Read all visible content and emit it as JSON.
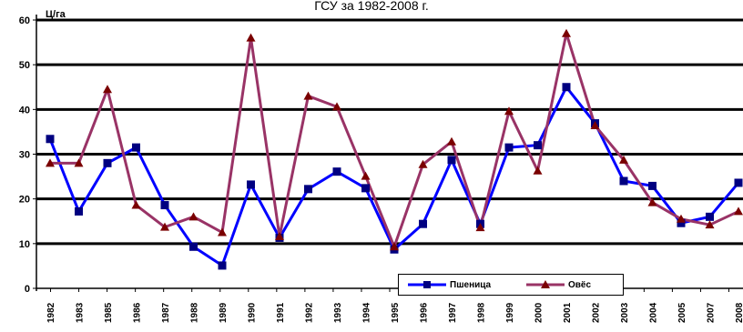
{
  "chart_data": {
    "type": "line",
    "title": "ГСУ за 1982-2008 г.",
    "ylabel": "Ц/га",
    "xlabel": "",
    "ylim": [
      0,
      60
    ],
    "yticks": [
      0,
      10,
      20,
      30,
      40,
      50,
      60
    ],
    "grid": true,
    "legend_position": "bottom-center",
    "categories": [
      "1982",
      "1983",
      "1985",
      "1986",
      "1987",
      "1988",
      "1989",
      "1990",
      "1991",
      "1992",
      "1993",
      "1994",
      "1995",
      "1996",
      "1997",
      "1998",
      "1999",
      "2000",
      "2001",
      "2002",
      "2003",
      "2004",
      "2005",
      "2007",
      "2008"
    ],
    "series": [
      {
        "name": "Пшеница",
        "color": "#0000ff",
        "marker": "square",
        "values": [
          33.4,
          17.2,
          28.0,
          31.5,
          18.6,
          9.3,
          5.1,
          23.2,
          11.3,
          22.2,
          26.1,
          22.4,
          8.7,
          14.4,
          28.7,
          14.4,
          31.5,
          32.0,
          45.0,
          36.9,
          24.0,
          22.9,
          14.6,
          16.0,
          23.6
        ]
      },
      {
        "name": "Овёс",
        "color": "#993366",
        "marker": "triangle",
        "values": [
          28.0,
          28.0,
          44.5,
          18.6,
          13.7,
          16.0,
          12.5,
          56.0,
          11.6,
          43.0,
          40.6,
          25.1,
          9.3,
          27.7,
          32.8,
          13.6,
          39.6,
          26.3,
          57.0,
          36.4,
          28.7,
          19.2,
          15.5,
          14.2,
          17.2
        ]
      }
    ]
  }
}
